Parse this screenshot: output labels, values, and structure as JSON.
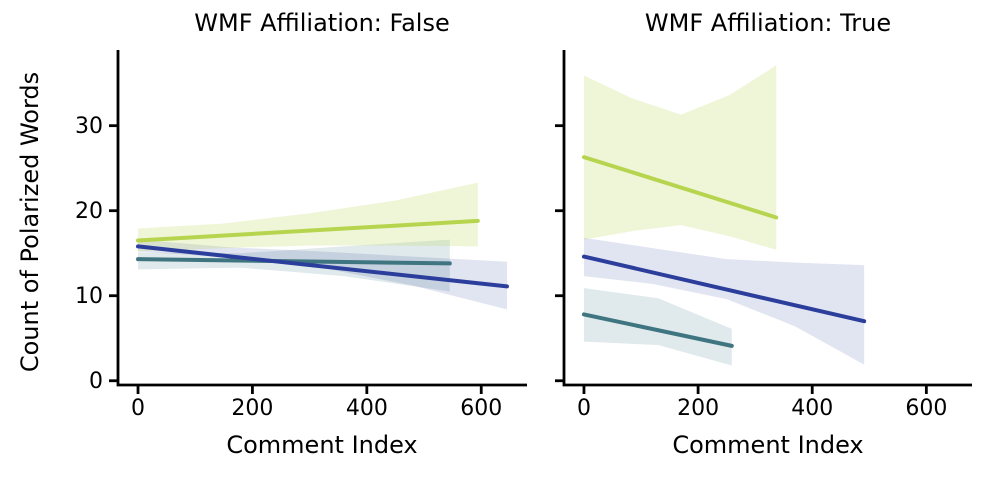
{
  "figure": {
    "background": "#ffffff",
    "axis_color": "#000000",
    "ylabel": "Count of Polarized Words"
  },
  "chart_data": [
    {
      "type": "line",
      "title": "WMF Affiliation: False",
      "xlabel": "Comment Index",
      "ylabel": "Count of Polarized Words",
      "xlim": [
        -35,
        680
      ],
      "ylim": [
        -0.5,
        38.9
      ],
      "xticks": [
        0,
        200,
        400,
        600
      ],
      "yticks": [
        0,
        10,
        20,
        30
      ],
      "grid": false,
      "legend": "none",
      "series": [
        {
          "id": "teal",
          "color": "#3e7580",
          "band_color": "rgba(62,117,128,0.16)",
          "x": [
            0,
            545
          ],
          "y": [
            14.3,
            13.8
          ],
          "band": {
            "x": [
              0,
              180,
              360,
              545
            ],
            "hi": [
              15.1,
              15.0,
              15.8,
              16.6
            ],
            "lo": [
              13.1,
              13.3,
              12.3,
              10.5
            ]
          }
        },
        {
          "id": "blue",
          "color": "#2c3e9c",
          "band_color": "rgba(44,62,156,0.14)",
          "x": [
            0,
            645
          ],
          "y": [
            15.8,
            11.1
          ],
          "band": {
            "x": [
              0,
              160,
              320,
              480,
              645
            ],
            "hi": [
              16.6,
              15.7,
              15.2,
              14.6,
              14.0
            ],
            "lo": [
              15.2,
              14.5,
              13.3,
              11.2,
              8.4
            ]
          }
        },
        {
          "id": "yellowgreen",
          "color": "#b7d44f",
          "band_color": "rgba(183,212,79,0.22)",
          "x": [
            0,
            594
          ],
          "y": [
            16.5,
            18.8
          ],
          "band": {
            "x": [
              0,
              150,
              300,
              450,
              594
            ],
            "hi": [
              17.9,
              18.5,
              19.7,
              21.2,
              23.3
            ],
            "lo": [
              15.2,
              15.6,
              15.9,
              15.9,
              15.8
            ]
          }
        }
      ]
    },
    {
      "type": "line",
      "title": "WMF Affiliation: True",
      "xlabel": "Comment Index",
      "ylabel": "Count of Polarized Words",
      "xlim": [
        -35,
        680
      ],
      "ylim": [
        -0.5,
        38.9
      ],
      "xticks": [
        0,
        200,
        400,
        600
      ],
      "yticks": [
        0,
        10,
        20,
        30
      ],
      "grid": false,
      "legend": "none",
      "series": [
        {
          "id": "teal",
          "color": "#3e7580",
          "band_color": "rgba(62,117,128,0.16)",
          "x": [
            0,
            259
          ],
          "y": [
            7.8,
            4.1
          ],
          "band": {
            "x": [
              0,
              130,
              259
            ],
            "hi": [
              10.9,
              9.7,
              6.1
            ],
            "lo": [
              4.6,
              4.2,
              1.8
            ]
          }
        },
        {
          "id": "blue",
          "color": "#2c3e9c",
          "band_color": "rgba(44,62,156,0.14)",
          "x": [
            0,
            491
          ],
          "y": [
            14.6,
            7.0
          ],
          "band": {
            "x": [
              0,
              120,
              250,
              370,
              491
            ],
            "hi": [
              16.8,
              15.6,
              14.3,
              13.9,
              13.6
            ],
            "lo": [
              12.3,
              11.4,
              9.6,
              6.4,
              1.9
            ]
          }
        },
        {
          "id": "yellowgreen",
          "color": "#b7d44f",
          "band_color": "rgba(183,212,79,0.22)",
          "x": [
            0,
            337
          ],
          "y": [
            26.3,
            19.2
          ],
          "band": {
            "x": [
              0,
              85,
              170,
              255,
              337
            ],
            "hi": [
              35.9,
              33.2,
              31.3,
              33.6,
              37.1
            ],
            "lo": [
              16.6,
              17.6,
              18.3,
              17.0,
              15.4
            ]
          }
        }
      ]
    }
  ]
}
